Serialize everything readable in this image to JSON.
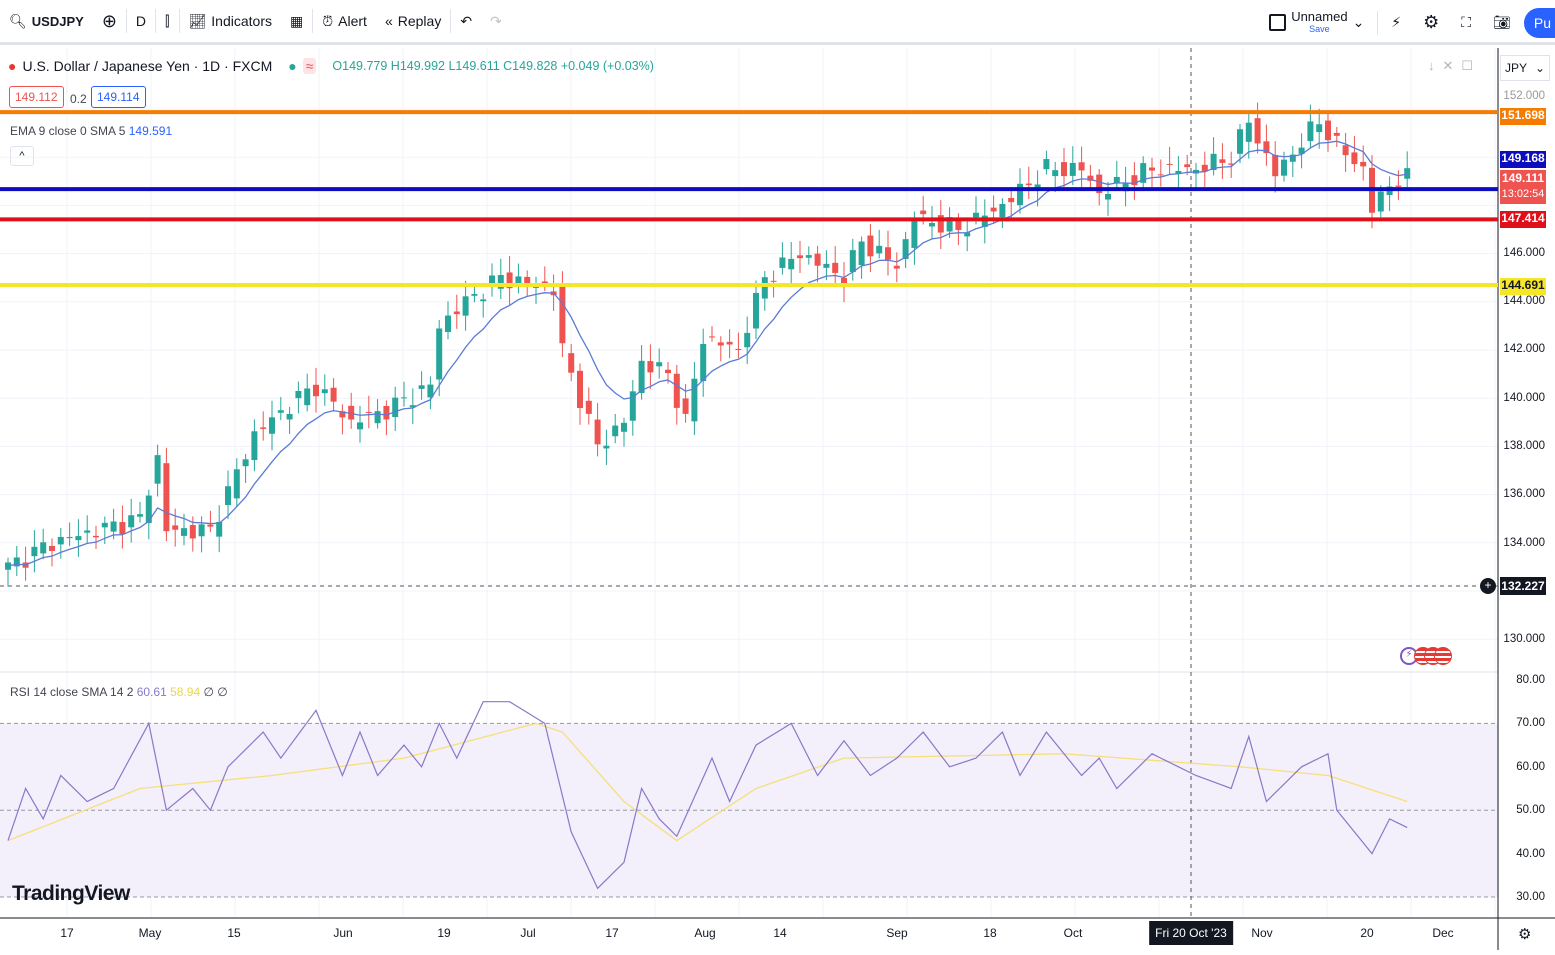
{
  "toolbar": {
    "symbol": "USDJPY",
    "interval": "D",
    "indicators": "Indicators",
    "alert": "Alert",
    "replay": "Replay",
    "layout_name": "Unnamed",
    "layout_save": "Save",
    "publish": "Pu"
  },
  "legend": {
    "title": "U.S. Dollar / Japanese Yen · 1D · FXCM",
    "ohlc": "O149.779 H149.992 L149.611 C149.828 +0.049 (+0.03%)",
    "sell": "149.112",
    "spread": "0.2",
    "buy": "149.114"
  },
  "ema": {
    "label": "EMA 9 close 0 SMA 5",
    "value": "149.591"
  },
  "rsi": {
    "label": "RSI 14 close SMA 14 2",
    "value": "60.61",
    "sma_value": "58.94",
    "extra1": "∅",
    "extra2": "∅"
  },
  "currency": "JPY",
  "price_axis": [
    "152.000",
    "146.000",
    "144.000",
    "142.000",
    "140.000",
    "138.000",
    "136.000",
    "134.000",
    "130.000"
  ],
  "rsi_axis": [
    "80.00",
    "70.00",
    "60.00",
    "50.00",
    "40.00",
    "30.00"
  ],
  "tags": {
    "orange": "151.698",
    "blue": "149.168",
    "last": "149.111",
    "countdown": "13:02:54",
    "red": "147.414",
    "yellow": "144.691",
    "crosshair": "132.227"
  },
  "x_axis": [
    "17",
    "May",
    "15",
    "Jun",
    "19",
    "Jul",
    "17",
    "Aug",
    "14",
    "Sep",
    "18",
    "Oct",
    "Fri 20 Oct '23",
    "Nov",
    "20",
    "Dec"
  ],
  "brand": "TradingView",
  "colors": {
    "up": "#26a69a",
    "down": "#ef5350",
    "orange": "#f57c00",
    "blue": "#0d0dbf",
    "red": "#e0101a",
    "yellow": "#f5e62a",
    "ema": "#5b7bd5",
    "rsi": "#8a78c8",
    "rsi_sma": "#f5e07a"
  },
  "chart_data": {
    "type": "candlestick",
    "price_path": [
      [
        0,
        133
      ],
      [
        5,
        134
      ],
      [
        10,
        134.5
      ],
      [
        15,
        135
      ],
      [
        17,
        137.5
      ],
      [
        18,
        134.5
      ],
      [
        23,
        134.5
      ],
      [
        28,
        138.5
      ],
      [
        33,
        140
      ],
      [
        35,
        140.5
      ],
      [
        39,
        139
      ],
      [
        43,
        139.5
      ],
      [
        48,
        140.5
      ],
      [
        49,
        143
      ],
      [
        52,
        144
      ],
      [
        56,
        145
      ],
      [
        62,
        144.5
      ],
      [
        63,
        142
      ],
      [
        66,
        139
      ],
      [
        67,
        138
      ],
      [
        70,
        139
      ],
      [
        72,
        141.5
      ],
      [
        75,
        141
      ],
      [
        77,
        139
      ],
      [
        79,
        142.5
      ],
      [
        83,
        142
      ],
      [
        86,
        145
      ],
      [
        90,
        146
      ],
      [
        95,
        145
      ],
      [
        97,
        146.5
      ],
      [
        101,
        145.5
      ],
      [
        103,
        147.5
      ],
      [
        108,
        147
      ],
      [
        113,
        148
      ],
      [
        118,
        149.5
      ],
      [
        122,
        149.5
      ],
      [
        124,
        148.5
      ],
      [
        130,
        149.5
      ],
      [
        135,
        149.5
      ],
      [
        139,
        150
      ],
      [
        141,
        151.5
      ],
      [
        143,
        150
      ],
      [
        144,
        149.3
      ],
      [
        149,
        151.5
      ],
      [
        151,
        150.5
      ],
      [
        154,
        149.5
      ],
      [
        155,
        147.8
      ],
      [
        157,
        148.9
      ],
      [
        159,
        149.1
      ]
    ],
    "rsi_path": [
      [
        0,
        43
      ],
      [
        2,
        55
      ],
      [
        4,
        48
      ],
      [
        6,
        58
      ],
      [
        9,
        52
      ],
      [
        12,
        55
      ],
      [
        16,
        70
      ],
      [
        18,
        50
      ],
      [
        21,
        55
      ],
      [
        23,
        50
      ],
      [
        25,
        60
      ],
      [
        29,
        68
      ],
      [
        31,
        62
      ],
      [
        35,
        73
      ],
      [
        38,
        58
      ],
      [
        40,
        68
      ],
      [
        42,
        58
      ],
      [
        45,
        65
      ],
      [
        47,
        60
      ],
      [
        49,
        70
      ],
      [
        51,
        62
      ],
      [
        54,
        75
      ],
      [
        57,
        75
      ],
      [
        61,
        70
      ],
      [
        64,
        45
      ],
      [
        67,
        32
      ],
      [
        70,
        38
      ],
      [
        72,
        55
      ],
      [
        74,
        48
      ],
      [
        76,
        44
      ],
      [
        80,
        62
      ],
      [
        82,
        52
      ],
      [
        85,
        65
      ],
      [
        89,
        70
      ],
      [
        92,
        58
      ],
      [
        95,
        66
      ],
      [
        98,
        58
      ],
      [
        101,
        62
      ],
      [
        104,
        68
      ],
      [
        107,
        60
      ],
      [
        110,
        62
      ],
      [
        113,
        68
      ],
      [
        115,
        58
      ],
      [
        118,
        68
      ],
      [
        122,
        58
      ],
      [
        124,
        62
      ],
      [
        126,
        55
      ],
      [
        130,
        63
      ],
      [
        135,
        58
      ],
      [
        139,
        55
      ],
      [
        141,
        67
      ],
      [
        143,
        52
      ],
      [
        147,
        60
      ],
      [
        150,
        63
      ],
      [
        151,
        50
      ],
      [
        155,
        40
      ],
      [
        157,
        48
      ],
      [
        159,
        46
      ]
    ],
    "rsi_sma_path": [
      [
        0,
        43
      ],
      [
        15,
        55
      ],
      [
        30,
        58
      ],
      [
        45,
        62
      ],
      [
        60,
        70
      ],
      [
        63,
        68
      ],
      [
        70,
        52
      ],
      [
        76,
        43
      ],
      [
        85,
        55
      ],
      [
        95,
        62
      ],
      [
        120,
        63
      ],
      [
        140,
        60
      ],
      [
        150,
        58
      ],
      [
        159,
        52
      ]
    ]
  }
}
